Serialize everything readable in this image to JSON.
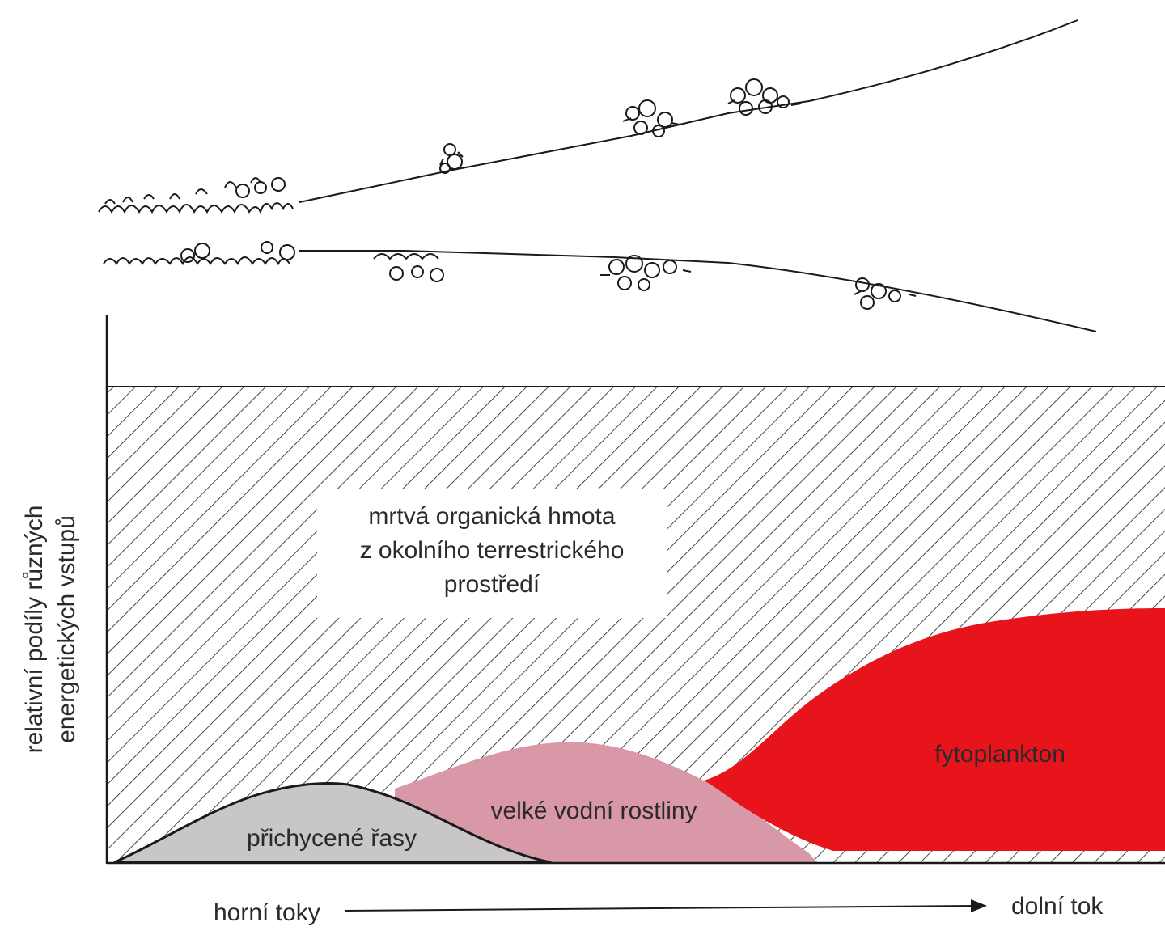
{
  "y_axis_label": {
    "line1": "relativní podíly různých",
    "line2": "energetických vstupů"
  },
  "x_axis_label": {
    "start": "horní toky",
    "end": "dolní tok"
  },
  "regions": {
    "dead_organic_matter": {
      "line1": "mrtvá organická hmota",
      "line2": "z okolního terrestrického",
      "line3": "prostředí"
    },
    "attached_algae": "přichycené řasy",
    "macrophytes": "velké vodní rostliny",
    "phytoplankton": "fytoplankton"
  },
  "colors": {
    "phytoplankton": "#e8141c",
    "macrophytes": "#d998a8",
    "attached_algae": "#c8c6c8",
    "hatch": "#1a1a1a",
    "ink": "#1a1a1a"
  }
}
